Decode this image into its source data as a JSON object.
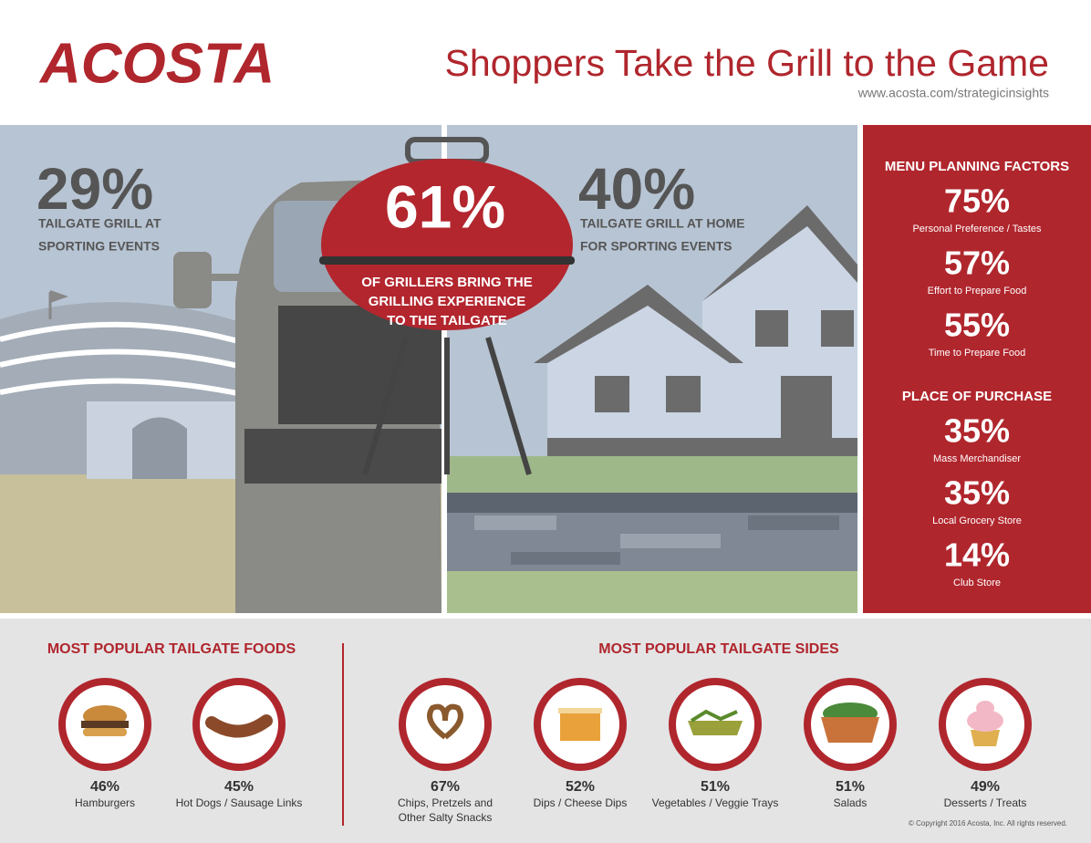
{
  "header": {
    "logo": "ACOSTA",
    "title": "Shoppers Take the Grill to the Game",
    "url": "www.acosta.com/strategicinsights"
  },
  "hero": {
    "left": {
      "value": "29%",
      "lines": [
        "TAILGATE GRILL AT",
        "SPORTING EVENTS"
      ]
    },
    "center": {
      "value": "61%",
      "lines": [
        "OF GRILLERS BRING THE",
        "GRILLING EXPERIENCE",
        "TO THE TAILGATE"
      ]
    },
    "right": {
      "value": "40%",
      "lines": [
        "TAILGATE GRILL AT HOME",
        "FOR SPORTING EVENTS"
      ]
    }
  },
  "sidebar": {
    "sections": [
      {
        "heading": "MENU PLANNING FACTORS",
        "items": [
          {
            "value": "75%",
            "label": "Personal Preference / Tastes"
          },
          {
            "value": "57%",
            "label": "Effort to Prepare Food"
          },
          {
            "value": "55%",
            "label": "Time to Prepare Food"
          }
        ]
      },
      {
        "heading": "PLACE OF PURCHASE",
        "items": [
          {
            "value": "35%",
            "label": "Mass Merchandiser"
          },
          {
            "value": "35%",
            "label": "Local Grocery Store"
          },
          {
            "value": "14%",
            "label": "Club Store"
          }
        ]
      }
    ]
  },
  "foods": {
    "heading": "MOST POPULAR TAILGATE FOODS",
    "items": [
      {
        "value": "46%",
        "label": [
          "Hamburgers"
        ]
      },
      {
        "value": "45%",
        "label": [
          "Hot Dogs / Sausage Links"
        ]
      }
    ]
  },
  "sides": {
    "heading": "MOST POPULAR TAILGATE  SIDES",
    "items": [
      {
        "value": "67%",
        "label": [
          "Chips, Pretzels and",
          "Other Salty Snacks"
        ]
      },
      {
        "value": "52%",
        "label": [
          "Dips / Cheese Dips"
        ]
      },
      {
        "value": "51%",
        "label": [
          "Vegetables / Veggie Trays"
        ]
      },
      {
        "value": "51%",
        "label": [
          "Salads"
        ]
      },
      {
        "value": "49%",
        "label": [
          "Desserts / Treats"
        ]
      }
    ]
  },
  "copyright": "© Copyright 2016 Acosta, Inc. All rights reserved."
}
